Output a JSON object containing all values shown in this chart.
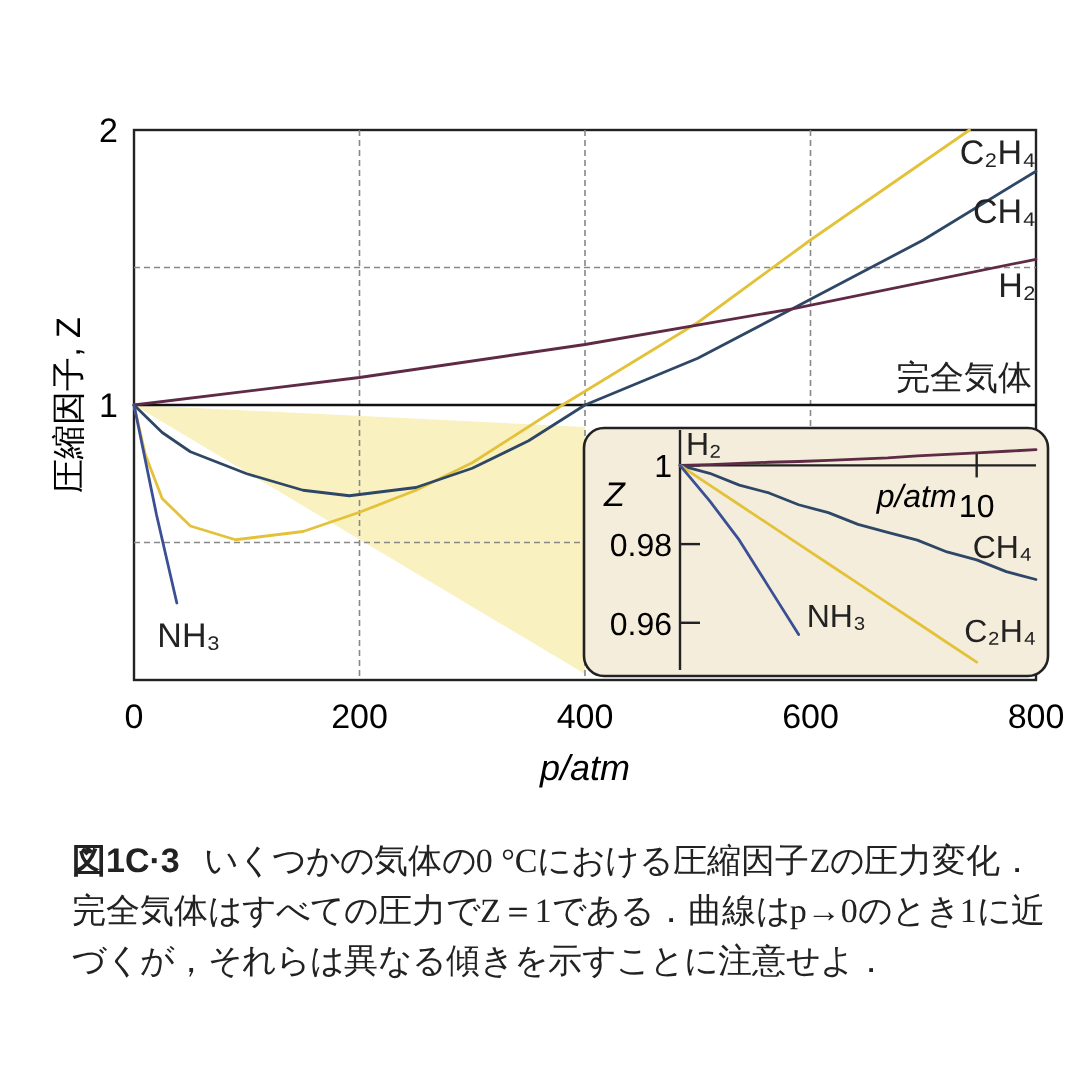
{
  "chart_data": [
    {
      "type": "line",
      "xlabel": "p/atm",
      "ylabel": "圧縮因子, Z",
      "xlim": [
        0,
        800
      ],
      "ylim": [
        0,
        2
      ],
      "xticks": [
        0,
        200,
        400,
        600,
        800
      ],
      "yticks": [
        {
          "value": 0.5,
          "label": null
        },
        1,
        {
          "value": 1.5,
          "label": null
        },
        2
      ],
      "grid": true,
      "series": [
        {
          "name": "C₂H₄",
          "color": "#e3c23a",
          "x": [
            0,
            10,
            25,
            50,
            90,
            150,
            200,
            250,
            300,
            380,
            500,
            600,
            741
          ],
          "values": [
            1,
            0.82,
            0.66,
            0.56,
            0.51,
            0.54,
            0.61,
            0.69,
            0.79,
            1.0,
            1.3,
            1.6,
            2.0
          ]
        },
        {
          "name": "CH₄",
          "color": "#2f4766",
          "x": [
            0,
            25,
            50,
            100,
            150,
            191,
            250,
            300,
            350,
            400,
            500,
            584,
            700,
            800
          ],
          "values": [
            1,
            0.9,
            0.83,
            0.75,
            0.69,
            0.67,
            0.7,
            0.77,
            0.87,
            1.0,
            1.17,
            1.35,
            1.6,
            1.85
          ]
        },
        {
          "name": "H₂",
          "color": "#5e2a45",
          "x": [
            0,
            200,
            400,
            584,
            800
          ],
          "values": [
            1,
            1.1,
            1.22,
            1.35,
            1.53
          ]
        },
        {
          "name": "NH₃",
          "color": "#3b4f94",
          "x": [
            0,
            10,
            20,
            38
          ],
          "values": [
            1,
            0.8,
            0.6,
            0.28
          ]
        }
      ],
      "ref_lines": [
        {
          "axis": "y",
          "value": 1,
          "label": "完全気体",
          "color": "#111111"
        }
      ],
      "annotations": [
        "図1C·3",
        "いくつかの気体の0 °Cにおける圧縮因子Zの圧力変化．完全気体はすべての圧力でZ＝1である．曲線はp→0のとき1に近づくが，それらは異なる傾きを示すことに注意せよ．"
      ]
    },
    {
      "type": "line",
      "xlabel": "p/atm",
      "ylabel": "Z",
      "categories": [
        null,
        null,
        null,
        null,
        null,
        null,
        null,
        null,
        null,
        null,
        "10",
        null,
        null
      ],
      "ylim": [
        0.948,
        1.009
      ],
      "yticks": [
        0.96,
        0.98,
        1
      ],
      "series": [
        {
          "name": "H₂",
          "color": "#5e2a45",
          "values": [
            1,
            1.0002,
            1.0005,
            1.0008,
            1.001,
            1.0013,
            1.0016,
            1.0019,
            1.0024,
            1.0028,
            1.0032,
            1.0036,
            1.004
          ]
        },
        {
          "name": "CH₄",
          "color": "#2f4766",
          "values": [
            1,
            0.998,
            0.995,
            0.993,
            0.99,
            0.988,
            0.985,
            0.983,
            0.981,
            0.978,
            0.976,
            0.973,
            0.971
          ]
        },
        {
          "name": "C₂H₄",
          "color": "#e3c23a",
          "values": [
            1,
            0.995,
            0.99,
            0.985,
            0.98,
            0.975,
            0.97,
            0.965,
            0.96,
            0.955,
            0.95,
            null,
            null
          ]
        },
        {
          "name": "NH₃",
          "color": "#3b4f94",
          "values": [
            1,
            0.991,
            0.981,
            0.969,
            0.957,
            null,
            null,
            null,
            null,
            null,
            null,
            null,
            null
          ]
        }
      ]
    }
  ]
}
